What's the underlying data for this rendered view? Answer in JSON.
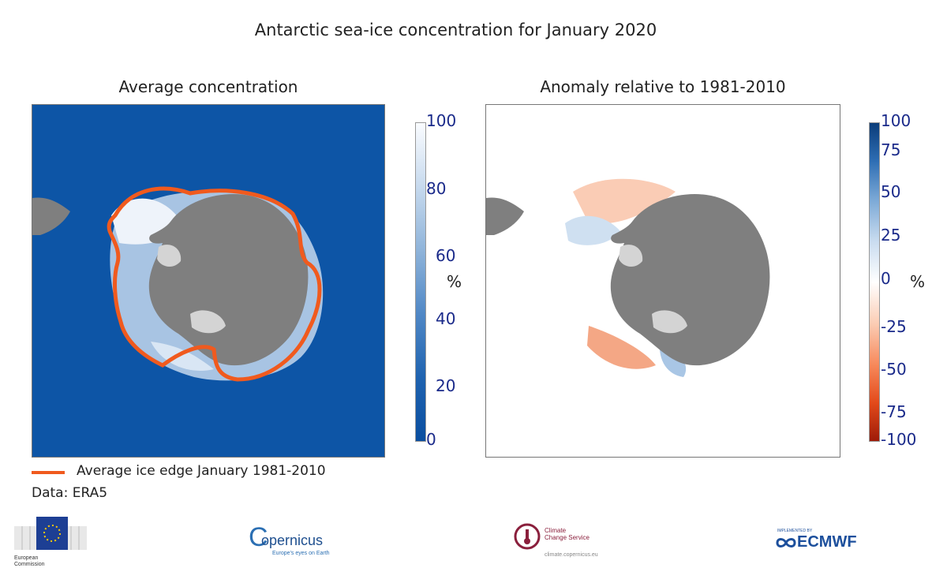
{
  "title": "Antarctic sea-ice concentration for January 2020",
  "left_panel": {
    "title": "Average concentration",
    "colorbar": {
      "ticks": [
        "100",
        "80",
        "60",
        "40",
        "20",
        "0"
      ],
      "unit": "%",
      "low_color": "#0a4ea0",
      "high_color": "#fafcff"
    }
  },
  "right_panel": {
    "title": "Anomaly relative to 1981-2010",
    "colorbar": {
      "ticks": [
        "100",
        "75",
        "50",
        "25",
        "0",
        "-25",
        "-50",
        "-75",
        "-100"
      ],
      "unit": "%",
      "positive_color": "#0a3c7a",
      "negative_color": "#9e1b08"
    }
  },
  "legend": {
    "label": "Average ice edge January 1981-2010",
    "color": "#f05a1e"
  },
  "data_source": "Data: ERA5",
  "logos": {
    "eu": {
      "line1": "European",
      "line2": "Commission"
    },
    "copernicus": {
      "name": "opernicus",
      "tagline": "Europe's eyes on Earth"
    },
    "c3s": {
      "line1": "Climate",
      "line2": "Change Service",
      "url": "climate.copernicus.eu"
    },
    "ecmwf": {
      "implemented_by": "IMPLEMENTED BY",
      "name": "ECMWF"
    }
  }
}
